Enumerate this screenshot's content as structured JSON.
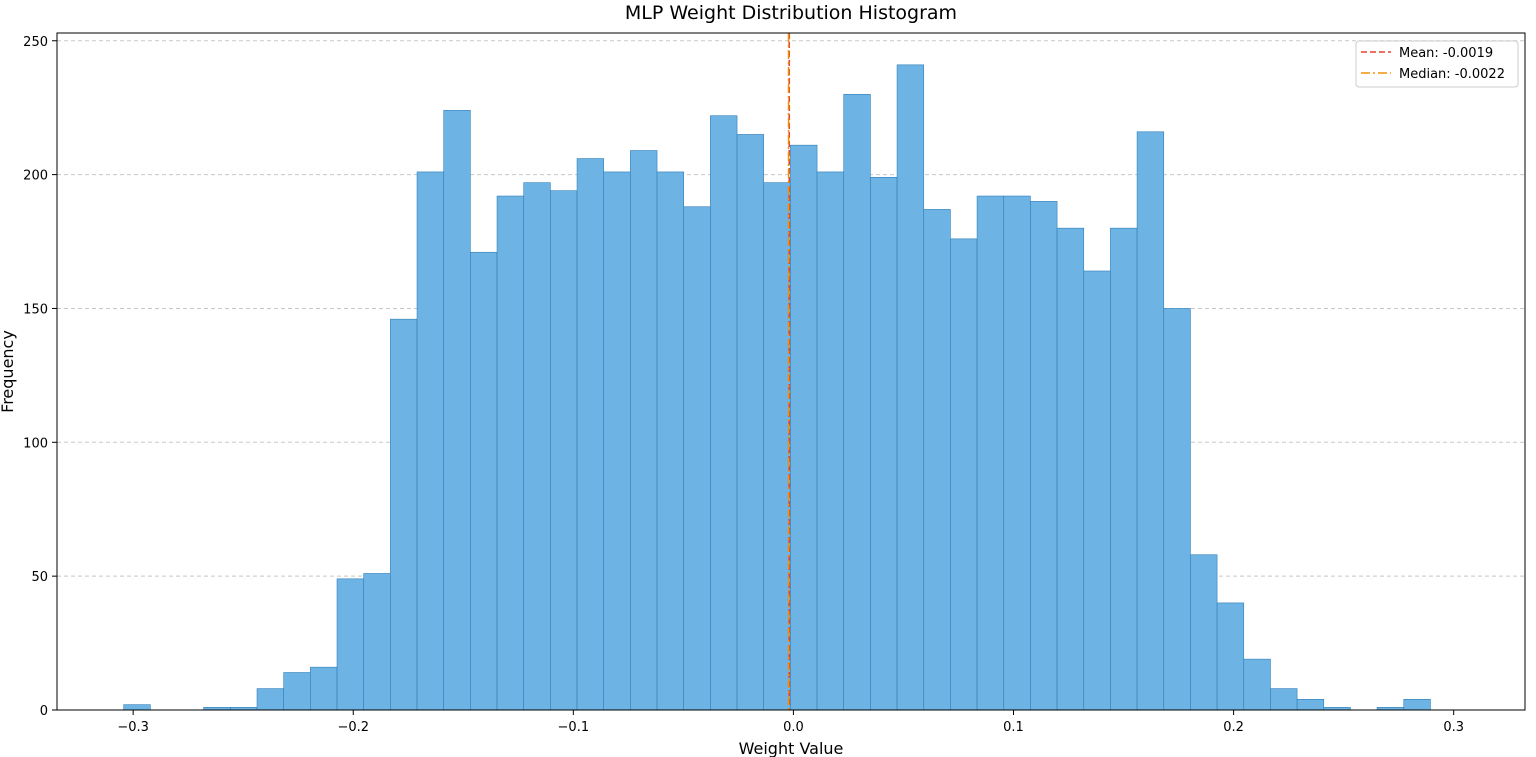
{
  "chart_data": {
    "type": "bar",
    "title": "MLP Weight Distribution Histogram",
    "xlabel": "Weight Value",
    "ylabel": "Frequency",
    "xlim": [
      -0.3346,
      0.3324
    ],
    "ylim": [
      0,
      252.9
    ],
    "xticks": [
      -0.3,
      -0.2,
      -0.1,
      0.0,
      0.1,
      0.2,
      0.3
    ],
    "xtick_labels": [
      "−0.3",
      "−0.2",
      "−0.1",
      "0.0",
      "0.1",
      "0.2",
      "0.3"
    ],
    "yticks": [
      0,
      50,
      100,
      150,
      200,
      250
    ],
    "ytick_labels": [
      "0",
      "50",
      "100",
      "150",
      "200",
      "250"
    ],
    "grid": "y-dashed",
    "bins": {
      "start": -0.3043,
      "width": 0.012117,
      "counts": [
        2,
        0,
        0,
        1,
        1,
        8,
        14,
        16,
        49,
        51,
        146,
        201,
        224,
        171,
        192,
        197,
        194,
        206,
        201,
        209,
        201,
        188,
        222,
        215,
        197,
        211,
        201,
        230,
        199,
        241,
        187,
        176,
        192,
        192,
        190,
        180,
        164,
        180,
        216,
        150,
        58,
        40,
        19,
        8,
        4,
        1,
        0,
        1,
        4
      ]
    },
    "bar_color": "#6db3e3",
    "bar_edge_color": "#2f7fba",
    "reference_lines": [
      {
        "name": "Mean: -0.0019",
        "value": -0.0019,
        "color": "#e8412c",
        "style": "dashed"
      },
      {
        "name": "Median: -0.0022",
        "value": -0.0022,
        "color": "#f0900a",
        "style": "dashdot"
      }
    ],
    "legend": {
      "position": "top-right"
    }
  }
}
